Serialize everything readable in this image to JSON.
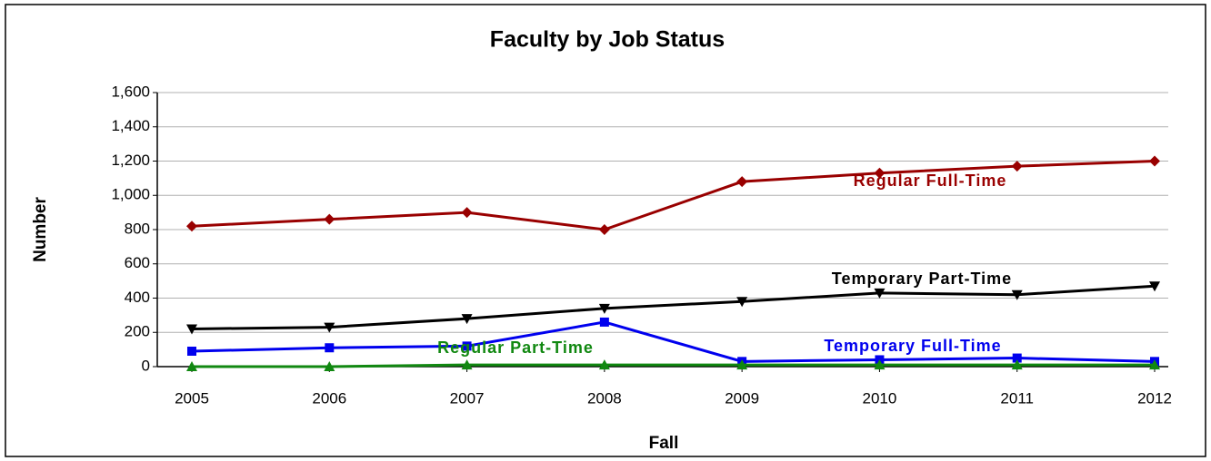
{
  "chart_data": {
    "type": "line",
    "title": "Faculty by Job Status",
    "x_label": "Fall",
    "y_label": "Number",
    "categories": [
      "2005",
      "2006",
      "2007",
      "2008",
      "2009",
      "2010",
      "2011",
      "2012"
    ],
    "series": [
      {
        "name": "Regular Full-Time",
        "color": "#990000",
        "marker": "diamond",
        "values": [
          820,
          860,
          900,
          800,
          1080,
          1130,
          1170,
          1200
        ]
      },
      {
        "name": "Temporary Part-Time",
        "color": "#000000",
        "marker": "triangle-down",
        "values": [
          220,
          230,
          280,
          340,
          380,
          430,
          420,
          470
        ]
      },
      {
        "name": "Temporary Full-Time",
        "color": "#0000ee",
        "marker": "square",
        "values": [
          90,
          110,
          120,
          260,
          30,
          40,
          50,
          30
        ]
      },
      {
        "name": "Regular Part-Time",
        "color": "#118811",
        "marker": "triangle-up",
        "values": [
          0,
          0,
          10,
          10,
          10,
          10,
          10,
          10
        ]
      }
    ],
    "ylim": [
      0,
      1600
    ],
    "yticks": [
      0,
      200,
      400,
      600,
      800,
      {
        "value": 1000,
        "label": "1,000"
      },
      {
        "value": 1200,
        "label": "1,200"
      },
      {
        "value": 1400,
        "label": "1,400"
      },
      {
        "value": 1600,
        "label": "1,600"
      }
    ],
    "grid": true
  }
}
